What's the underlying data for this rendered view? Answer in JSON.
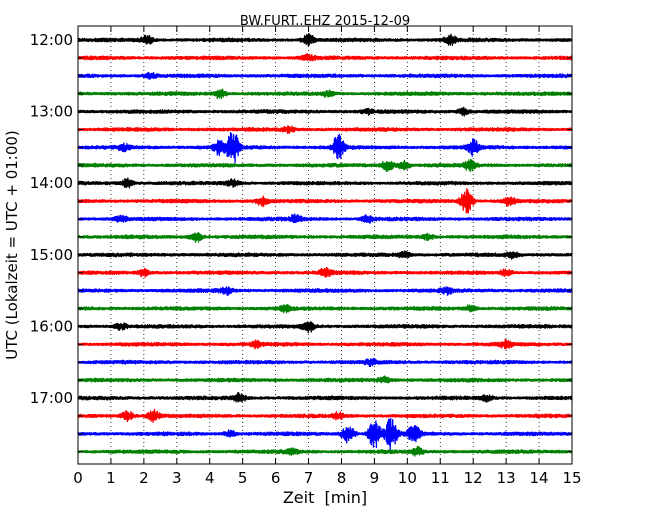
{
  "chart_data": {
    "type": "line",
    "title": "BW.FURT..EHZ 2015-12-09",
    "xlabel": "Zeit  [min]",
    "ylabel": "UTC (Lokalzeit = UTC + 01:00)",
    "xlim": [
      0,
      15
    ],
    "x_ticks": [
      "0",
      "1",
      "2",
      "3",
      "4",
      "5",
      "6",
      "7",
      "8",
      "9",
      "10",
      "11",
      "12",
      "13",
      "14",
      "15"
    ],
    "y_tick_labels": [
      "12:00",
      "13:00",
      "14:00",
      "15:00",
      "16:00",
      "17:00"
    ],
    "grid": true,
    "colors": [
      "#000000",
      "#ff0000",
      "#0000ff",
      "#008000"
    ],
    "series": [
      {
        "start": "12:00",
        "events": [
          {
            "t": 2.1,
            "amp": 0.45
          },
          {
            "t": 7.0,
            "amp": 0.6
          },
          {
            "t": 11.3,
            "amp": 0.55
          }
        ]
      },
      {
        "start": "12:15",
        "events": [
          {
            "t": 7.0,
            "amp": 0.35
          }
        ]
      },
      {
        "start": "12:30",
        "events": [
          {
            "t": 2.2,
            "amp": 0.35
          }
        ]
      },
      {
        "start": "12:45",
        "events": [
          {
            "t": 4.3,
            "amp": 0.5
          },
          {
            "t": 7.6,
            "amp": 0.3
          }
        ]
      },
      {
        "start": "13:00",
        "events": [
          {
            "t": 11.7,
            "amp": 0.4
          },
          {
            "t": 8.8,
            "amp": 0.25
          }
        ]
      },
      {
        "start": "13:15",
        "events": [
          {
            "t": 6.4,
            "amp": 0.3
          }
        ]
      },
      {
        "start": "13:30",
        "events": [
          {
            "t": 4.7,
            "amp": 1.9
          },
          {
            "t": 4.3,
            "amp": 0.8
          },
          {
            "t": 7.9,
            "amp": 1.3
          },
          {
            "t": 12.0,
            "amp": 0.8
          },
          {
            "t": 1.4,
            "amp": 0.3
          }
        ]
      },
      {
        "start": "13:45",
        "events": [
          {
            "t": 9.4,
            "amp": 0.6
          },
          {
            "t": 9.9,
            "amp": 0.45
          },
          {
            "t": 11.9,
            "amp": 0.5
          }
        ]
      },
      {
        "start": "14:00",
        "events": [
          {
            "t": 1.5,
            "amp": 0.5
          },
          {
            "t": 4.7,
            "amp": 0.35
          }
        ]
      },
      {
        "start": "14:15",
        "events": [
          {
            "t": 11.8,
            "amp": 1.4
          },
          {
            "t": 5.6,
            "amp": 0.5
          },
          {
            "t": 13.1,
            "amp": 0.45
          }
        ]
      },
      {
        "start": "14:30",
        "events": [
          {
            "t": 6.6,
            "amp": 0.45
          },
          {
            "t": 8.8,
            "amp": 0.35
          },
          {
            "t": 1.3,
            "amp": 0.35
          }
        ]
      },
      {
        "start": "14:45",
        "events": [
          {
            "t": 3.6,
            "amp": 0.5
          },
          {
            "t": 10.6,
            "amp": 0.3
          }
        ]
      },
      {
        "start": "15:00",
        "events": [
          {
            "t": 9.9,
            "amp": 0.35
          },
          {
            "t": 13.2,
            "amp": 0.3
          }
        ]
      },
      {
        "start": "15:15",
        "events": [
          {
            "t": 2.0,
            "amp": 0.4
          },
          {
            "t": 7.5,
            "amp": 0.45
          },
          {
            "t": 13.0,
            "amp": 0.35
          }
        ]
      },
      {
        "start": "15:30",
        "events": [
          {
            "t": 4.5,
            "amp": 0.35
          },
          {
            "t": 11.2,
            "amp": 0.3
          }
        ]
      },
      {
        "start": "15:45",
        "events": [
          {
            "t": 6.3,
            "amp": 0.35
          },
          {
            "t": 11.9,
            "amp": 0.3
          }
        ]
      },
      {
        "start": "16:00",
        "events": [
          {
            "t": 7.0,
            "amp": 0.55
          },
          {
            "t": 1.3,
            "amp": 0.35
          }
        ]
      },
      {
        "start": "16:15",
        "events": [
          {
            "t": 5.4,
            "amp": 0.3
          },
          {
            "t": 13.0,
            "amp": 0.35
          }
        ]
      },
      {
        "start": "16:30",
        "events": [
          {
            "t": 8.9,
            "amp": 0.3
          }
        ]
      },
      {
        "start": "16:45",
        "events": [
          {
            "t": 9.3,
            "amp": 0.3
          }
        ]
      },
      {
        "start": "17:00",
        "events": [
          {
            "t": 4.9,
            "amp": 0.45
          },
          {
            "t": 12.4,
            "amp": 0.3
          }
        ]
      },
      {
        "start": "17:15",
        "events": [
          {
            "t": 1.5,
            "amp": 0.5
          },
          {
            "t": 2.3,
            "amp": 0.6
          },
          {
            "t": 7.9,
            "amp": 0.35
          }
        ]
      },
      {
        "start": "17:30",
        "events": [
          {
            "t": 9.0,
            "amp": 1.6
          },
          {
            "t": 9.5,
            "amp": 1.7
          },
          {
            "t": 8.2,
            "amp": 1.0
          },
          {
            "t": 10.2,
            "amp": 0.9
          },
          {
            "t": 4.6,
            "amp": 0.35
          }
        ]
      },
      {
        "start": "17:45",
        "events": [
          {
            "t": 10.3,
            "amp": 0.4
          },
          {
            "t": 6.5,
            "amp": 0.3
          }
        ]
      }
    ]
  }
}
